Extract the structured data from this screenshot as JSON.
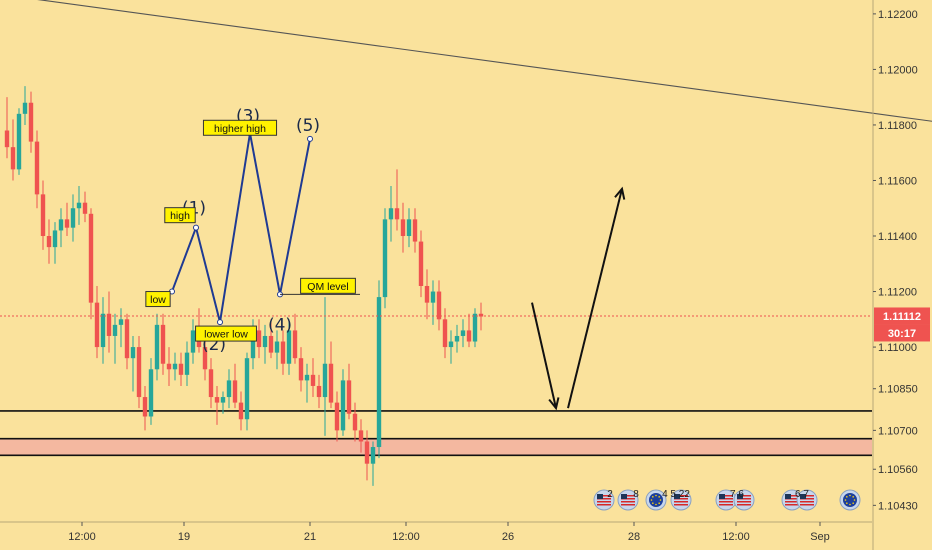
{
  "chart_data": {
    "type": "candlestick",
    "symbol_pair_axis_labels": {
      "y_ticks": [
        "1.12200",
        "1.12000",
        "1.11800",
        "1.11600",
        "1.11400",
        "1.11200",
        "1.11000",
        "1.10850",
        "1.10700",
        "1.10560",
        "1.10430"
      ],
      "x_ticks": [
        "12:00",
        "19",
        "21",
        "12:00",
        "26",
        "28",
        "12:00",
        "Sep"
      ]
    },
    "ylim": [
      1.1037,
      1.1225
    ],
    "current_price": "1.11112",
    "countdown": "30:17",
    "candles": [
      [
        1.1178,
        1.119,
        1.1168,
        1.1172
      ],
      [
        1.1172,
        1.1182,
        1.116,
        1.1164
      ],
      [
        1.1164,
        1.1186,
        1.1162,
        1.1184
      ],
      [
        1.1184,
        1.1194,
        1.118,
        1.1188
      ],
      [
        1.1188,
        1.1192,
        1.117,
        1.1174
      ],
      [
        1.1174,
        1.1178,
        1.115,
        1.1155
      ],
      [
        1.1155,
        1.116,
        1.1135,
        1.114
      ],
      [
        1.114,
        1.1146,
        1.113,
        1.1136
      ],
      [
        1.1136,
        1.1145,
        1.113,
        1.1142
      ],
      [
        1.1142,
        1.115,
        1.1136,
        1.1146
      ],
      [
        1.1146,
        1.1152,
        1.114,
        1.1143
      ],
      [
        1.1143,
        1.1155,
        1.1138,
        1.115
      ],
      [
        1.115,
        1.1158,
        1.1144,
        1.1152
      ],
      [
        1.1152,
        1.1156,
        1.1145,
        1.1148
      ],
      [
        1.1148,
        1.115,
        1.111,
        1.1116
      ],
      [
        1.1116,
        1.1122,
        1.1096,
        1.11
      ],
      [
        1.11,
        1.1118,
        1.1094,
        1.1112
      ],
      [
        1.1112,
        1.112,
        1.1098,
        1.1104
      ],
      [
        1.1104,
        1.1112,
        1.1094,
        1.1108
      ],
      [
        1.1108,
        1.1114,
        1.11,
        1.111
      ],
      [
        1.111,
        1.1112,
        1.1092,
        1.1096
      ],
      [
        1.1096,
        1.1104,
        1.1084,
        1.11
      ],
      [
        1.11,
        1.1104,
        1.1078,
        1.1082
      ],
      [
        1.1082,
        1.1086,
        1.107,
        1.1075
      ],
      [
        1.1075,
        1.1096,
        1.1072,
        1.1092
      ],
      [
        1.1092,
        1.1112,
        1.1088,
        1.1108
      ],
      [
        1.1108,
        1.1112,
        1.109,
        1.1094
      ],
      [
        1.1094,
        1.11,
        1.1086,
        1.1092
      ],
      [
        1.1092,
        1.1098,
        1.1088,
        1.1094
      ],
      [
        1.1094,
        1.1098,
        1.1086,
        1.109
      ],
      [
        1.109,
        1.1102,
        1.1086,
        1.1098
      ],
      [
        1.1098,
        1.111,
        1.1094,
        1.1106
      ],
      [
        1.1106,
        1.1114,
        1.1098,
        1.11
      ],
      [
        1.11,
        1.1104,
        1.1088,
        1.1092
      ],
      [
        1.1092,
        1.1096,
        1.1078,
        1.1082
      ],
      [
        1.1082,
        1.1086,
        1.1072,
        1.108
      ],
      [
        1.108,
        1.1084,
        1.1076,
        1.1082
      ],
      [
        1.1082,
        1.1092,
        1.1078,
        1.1088
      ],
      [
        1.1088,
        1.1094,
        1.1078,
        1.108
      ],
      [
        1.108,
        1.1084,
        1.107,
        1.1074
      ],
      [
        1.1074,
        1.1098,
        1.107,
        1.1096
      ],
      [
        1.1096,
        1.111,
        1.1092,
        1.1106
      ],
      [
        1.1106,
        1.111,
        1.1096,
        1.11
      ],
      [
        1.11,
        1.1108,
        1.1094,
        1.1104
      ],
      [
        1.1104,
        1.111,
        1.1096,
        1.1098
      ],
      [
        1.1098,
        1.1106,
        1.1092,
        1.1102
      ],
      [
        1.1102,
        1.1106,
        1.109,
        1.1094
      ],
      [
        1.1094,
        1.111,
        1.109,
        1.1106
      ],
      [
        1.1106,
        1.1112,
        1.1094,
        1.1096
      ],
      [
        1.1096,
        1.11,
        1.1084,
        1.1088
      ],
      [
        1.1088,
        1.1094,
        1.108,
        1.109
      ],
      [
        1.109,
        1.1096,
        1.1082,
        1.1086
      ],
      [
        1.1086,
        1.109,
        1.1078,
        1.1082
      ],
      [
        1.1082,
        1.1118,
        1.1068,
        1.1094
      ],
      [
        1.1094,
        1.1102,
        1.1078,
        1.108
      ],
      [
        1.108,
        1.1084,
        1.1066,
        1.107
      ],
      [
        1.107,
        1.1092,
        1.1068,
        1.1088
      ],
      [
        1.1088,
        1.1094,
        1.1074,
        1.1076
      ],
      [
        1.1076,
        1.108,
        1.1066,
        1.107
      ],
      [
        1.107,
        1.1074,
        1.1062,
        1.1066
      ],
      [
        1.1066,
        1.107,
        1.1052,
        1.1058
      ],
      [
        1.1058,
        1.1066,
        1.105,
        1.1064
      ],
      [
        1.1064,
        1.1124,
        1.106,
        1.1118
      ],
      [
        1.1118,
        1.115,
        1.1114,
        1.1146
      ],
      [
        1.1146,
        1.1158,
        1.1138,
        1.115
      ],
      [
        1.115,
        1.1164,
        1.1142,
        1.1146
      ],
      [
        1.1146,
        1.1152,
        1.1134,
        1.114
      ],
      [
        1.114,
        1.115,
        1.1136,
        1.1146
      ],
      [
        1.1146,
        1.115,
        1.1134,
        1.1138
      ],
      [
        1.1138,
        1.1142,
        1.1118,
        1.1122
      ],
      [
        1.1122,
        1.1128,
        1.111,
        1.1116
      ],
      [
        1.1116,
        1.1124,
        1.1108,
        1.112
      ],
      [
        1.112,
        1.1124,
        1.1106,
        1.111
      ],
      [
        1.111,
        1.1114,
        1.1096,
        1.11
      ],
      [
        1.11,
        1.1106,
        1.1094,
        1.1102
      ],
      [
        1.1102,
        1.1108,
        1.1098,
        1.1104
      ],
      [
        1.1104,
        1.111,
        1.11,
        1.1106
      ],
      [
        1.1106,
        1.1112,
        1.11,
        1.1102
      ],
      [
        1.1102,
        1.1114,
        1.11,
        1.1112
      ],
      [
        1.1112,
        1.1116,
        1.1106,
        1.1111
      ]
    ],
    "resistance_trendline": {
      "from": {
        "bar": -4,
        "price": 1.1228
      },
      "to": {
        "bar": 234,
        "price": 1.1158
      }
    },
    "horizontal_levels": [
      1.1077,
      1.1067,
      1.1061
    ],
    "demand_zone": [
      1.1061,
      1.1067
    ],
    "current_price_line": 1.11112,
    "elliott_wave": {
      "points": [
        {
          "label": "low",
          "num": "",
          "bar": 28,
          "price": 1.112
        },
        {
          "label": "high",
          "num": "(1)",
          "bar": 32,
          "price": 1.1143
        },
        {
          "label": "lower low",
          "num": "(2)",
          "bar": 36,
          "price": 1.1109
        },
        {
          "label": "higher high",
          "num": "(3)",
          "bar": 41,
          "price": 1.1177
        },
        {
          "label": "QM level",
          "num": "(4)",
          "bar": 46,
          "price": 1.1119
        },
        {
          "label": "",
          "num": "(5)",
          "bar": 51,
          "price": 1.1175
        }
      ]
    },
    "projection_arrows": [
      {
        "from": {
          "bar": 88,
          "price": 1.1116
        },
        "to": {
          "bar": 92,
          "price": 1.1078
        }
      },
      {
        "from": {
          "bar": 94,
          "price": 1.1078
        },
        "to": {
          "bar": 103,
          "price": 1.1157
        }
      }
    ],
    "colors": {
      "up": "#26a69a",
      "down": "#ef5350",
      "trendline": "#555555",
      "wave": "#1f3a93",
      "zone": "#f4b8a0",
      "price_badge": "#ef5350",
      "background": "#fae29c"
    },
    "event_markers": [
      {
        "label": "2",
        "icon": "us-flag-icon"
      },
      {
        "label": "8",
        "icon": "us-flag-icon"
      },
      {
        "label": "4 5 22",
        "icon": "eu-flag-icon"
      },
      {
        "label": "7 6",
        "icon": "us-flag-icon"
      },
      {
        "label": "6 7",
        "icon": "us-flag-icon"
      },
      {
        "label": "",
        "icon": "eu-flag-icon"
      }
    ]
  }
}
